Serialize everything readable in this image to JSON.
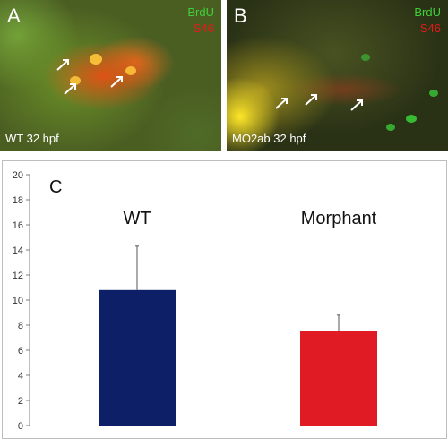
{
  "panel_a": {
    "letter": "A",
    "label_brdu": "BrdU",
    "label_s46": "S46",
    "caption": "WT 32 hpf"
  },
  "panel_b": {
    "letter": "B",
    "label_brdu": "BrdU",
    "label_s46": "S46",
    "caption": "MO2ab 32 hpf"
  },
  "colors": {
    "brdu": "#3fcf3a",
    "s46": "#e41a1a",
    "wt_bar": "#0d1f66",
    "morphant_bar": "#e01b24"
  },
  "chart_data": {
    "type": "bar",
    "panel_letter": "C",
    "categories": [
      "WT",
      "Morphant"
    ],
    "values": [
      10.8,
      7.5
    ],
    "errors": [
      3.5,
      1.3
    ],
    "ylim": [
      0,
      20
    ],
    "yticks": [
      0,
      2,
      4,
      6,
      8,
      10,
      12,
      14,
      16,
      18,
      20
    ],
    "grid": false
  }
}
